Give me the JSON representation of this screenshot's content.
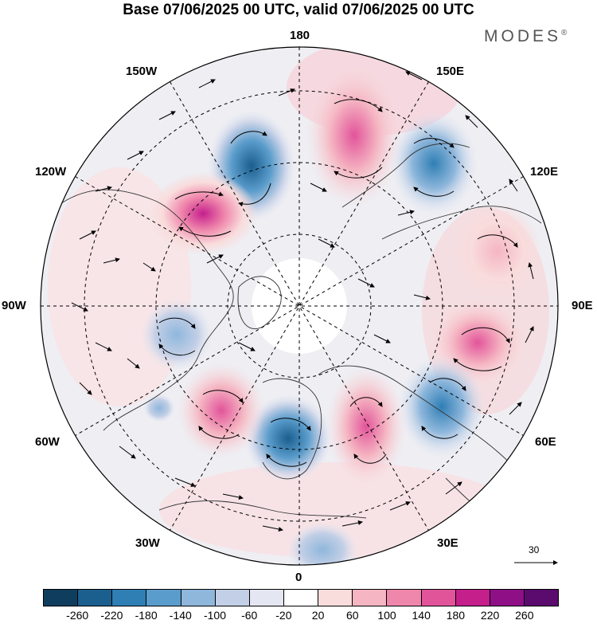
{
  "title": "Base 07/06/2025 00 UTC, valid 07/06/2025 00 UTC",
  "brand": {
    "name": "MODES",
    "mark": "®"
  },
  "longitude_labels": {
    "deg180": "180",
    "deg150W": "150W",
    "deg150E": "150E",
    "deg120W": "120W",
    "deg120E": "120E",
    "deg90W": "90W",
    "deg90E": "90E",
    "deg60W": "60W",
    "deg60E": "60E",
    "deg30W": "30W",
    "deg30E": "30E",
    "deg0": "0"
  },
  "reference_vector": {
    "label": "30"
  },
  "colorbar": {
    "ticks": [
      "-260",
      "-220",
      "-180",
      "-140",
      "-100",
      "-60",
      "-20",
      "20",
      "60",
      "100",
      "140",
      "180",
      "220",
      "260"
    ],
    "colors": [
      "#0f3d5e",
      "#1b5f8f",
      "#2f7fb5",
      "#5a9ccb",
      "#8fb7dc",
      "#c2cfe6",
      "#e4e6f2",
      "#ffffff",
      "#f9dcdc",
      "#f5b5c2",
      "#ef86ab",
      "#e2549a",
      "#c51f8c",
      "#8e0f86",
      "#5b0a6e"
    ]
  },
  "anomaly_centers": [
    {
      "sign": "negative",
      "level": "strong",
      "lat_region": "150W",
      "color": "#1b5f8f"
    },
    {
      "sign": "positive",
      "level": "strong",
      "lat_region": "120W",
      "color": "#c51f8c"
    },
    {
      "sign": "positive",
      "level": "moderate",
      "lat_region": "160E",
      "color": "#e2549a"
    },
    {
      "sign": "negative",
      "level": "moderate",
      "lat_region": "130E",
      "color": "#5a9ccb"
    },
    {
      "sign": "positive",
      "level": "moderate",
      "lat_region": "100E",
      "color": "#f5b5c2"
    },
    {
      "sign": "positive",
      "level": "moderate",
      "lat_region": "80E",
      "color": "#ef86ab"
    },
    {
      "sign": "negative",
      "level": "moderate",
      "lat_region": "60E",
      "color": "#2f7fb5"
    },
    {
      "sign": "positive",
      "level": "moderate",
      "lat_region": "20E",
      "color": "#e2549a"
    },
    {
      "sign": "negative",
      "level": "strong",
      "lat_region": "10W",
      "color": "#1b5f8f"
    },
    {
      "sign": "positive",
      "level": "moderate",
      "lat_region": "50W",
      "color": "#e2549a"
    },
    {
      "sign": "negative",
      "level": "weak",
      "lat_region": "80W",
      "color": "#5a9ccb"
    },
    {
      "sign": "positive",
      "level": "weak",
      "lat_region": "110W",
      "color": "#f5b5c2"
    }
  ]
}
